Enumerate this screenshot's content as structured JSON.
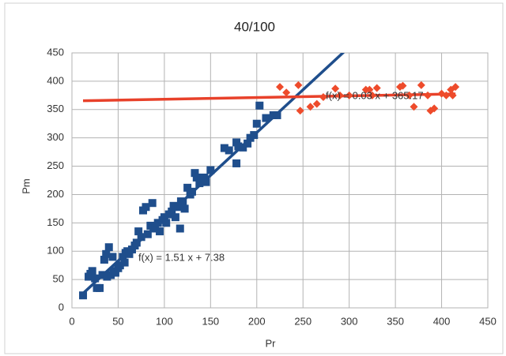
{
  "chart_data": {
    "type": "scatter",
    "title": "40/100",
    "x_label": "Pr",
    "y_label": "Pm",
    "xlim": [
      0,
      450
    ],
    "ylim": [
      0,
      450
    ],
    "xticks": [
      0,
      50,
      100,
      150,
      200,
      250,
      300,
      350,
      400,
      450
    ],
    "yticks": [
      0,
      50,
      100,
      150,
      200,
      250,
      300,
      350,
      400,
      450
    ],
    "grid": true,
    "series": [
      {
        "color": "#1f4e8c",
        "marker": "square",
        "x": [
          12,
          18,
          20,
          22,
          25,
          27,
          30,
          33,
          35,
          37,
          38,
          40,
          42,
          44,
          45,
          47,
          50,
          52,
          55,
          57,
          58,
          60,
          62,
          65,
          68,
          70,
          72,
          75,
          77,
          80,
          82,
          85,
          87,
          90,
          93,
          95,
          98,
          100,
          102,
          105,
          108,
          110,
          112,
          115,
          117,
          118,
          120,
          122,
          125,
          128,
          130,
          133,
          135,
          138,
          140,
          143,
          145,
          150,
          165,
          170,
          178,
          178,
          180,
          185,
          190,
          193,
          197,
          200,
          203,
          210,
          218,
          222
        ],
        "values": [
          22,
          55,
          60,
          65,
          52,
          35,
          35,
          58,
          85,
          95,
          55,
          107,
          58,
          90,
          65,
          62,
          70,
          75,
          90,
          80,
          97,
          100,
          95,
          103,
          110,
          115,
          135,
          125,
          172,
          178,
          130,
          145,
          185,
          140,
          150,
          135,
          155,
          160,
          150,
          165,
          170,
          180,
          160,
          178,
          140,
          188,
          185,
          175,
          212,
          200,
          205,
          238,
          230,
          220,
          228,
          230,
          222,
          243,
          282,
          278,
          292,
          255,
          285,
          283,
          290,
          300,
          305,
          325,
          357,
          335,
          340,
          340
        ],
        "trendline": {
          "label": "f(x) = 1.51  x + 7.38",
          "slope": 1.51,
          "intercept": 7.38,
          "color": "#1f4e8c"
        }
      },
      {
        "color": "#ee4b2b",
        "marker": "diamond",
        "x": [
          225,
          232,
          245,
          247,
          258,
          265,
          272,
          285,
          290,
          300,
          318,
          322,
          330,
          325,
          355,
          358,
          365,
          370,
          378,
          385,
          388,
          392,
          400,
          405,
          410,
          412,
          415
        ],
        "values": [
          390,
          380,
          393,
          348,
          355,
          360,
          372,
          387,
          375,
          375,
          385,
          385,
          388,
          375,
          390,
          392,
          375,
          355,
          393,
          375,
          348,
          352,
          378,
          375,
          385,
          375,
          390
        ],
        "trendline": {
          "label": "f(x) = 0.03 x + 365.17",
          "slope": 0.03,
          "intercept": 365.17,
          "color": "#e8412a"
        }
      }
    ]
  }
}
